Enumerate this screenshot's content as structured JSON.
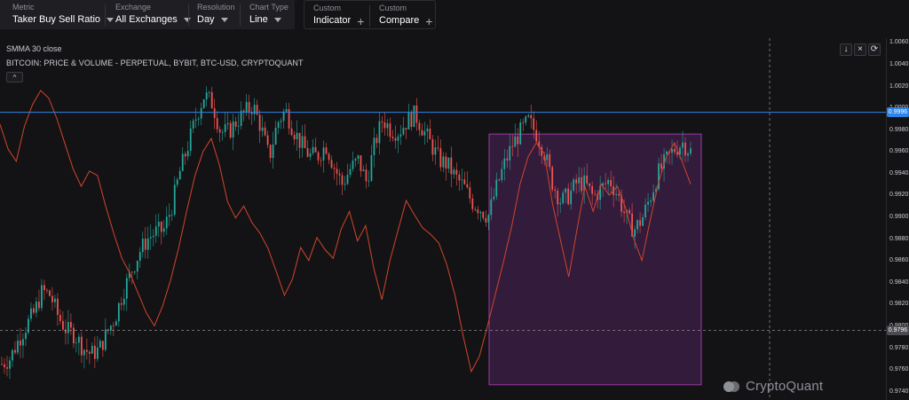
{
  "toolbar": {
    "metric": {
      "label": "Metric",
      "value": "Taker Buy Sell Ratio"
    },
    "exchange": {
      "label": "Exchange",
      "value": "All Exchanges"
    },
    "resolution": {
      "label": "Resolution",
      "value": "Day"
    },
    "chart_type": {
      "label": "Chart Type",
      "value": "Line"
    },
    "indicator": {
      "label": "Custom",
      "value": "Indicator"
    },
    "compare": {
      "label": "Custom",
      "value": "Compare"
    }
  },
  "legend": {
    "indicator": "SMMA 30 close",
    "series": "BITCOIN: PRICE & VOLUME - PERPETUAL, BYBIT, BTC-USD, CRYPTOQUANT",
    "collapse_icon": "chevron-up-icon"
  },
  "chart_controls": {
    "download_icon": "download-icon",
    "close_icon": "close-icon",
    "fullscreen_icon": "fullscreen-icon"
  },
  "watermark": "CryptoQuant",
  "colors": {
    "up": "#26a69a",
    "down": "#ef5350",
    "smma": "#d2452b",
    "price_line": "#2d83e6",
    "highlight_fill": "#3b1d47",
    "highlight_stroke": "#9c3aa6"
  },
  "chart_data": {
    "type": "line",
    "y_axis": {
      "ticks": [
        "1.0060",
        "1.0040",
        "1.0020",
        "1.0000",
        "0.9980",
        "0.9960",
        "0.9940",
        "0.9920",
        "0.9900",
        "0.9880",
        "0.9860",
        "0.9840",
        "0.9820",
        "0.9800",
        "0.9780",
        "0.9760",
        "0.9740"
      ],
      "range": [
        0.9732,
        1.0064
      ]
    },
    "price_line": {
      "label": "0.9996",
      "value": 0.9996
    },
    "crosshair": {
      "label": "0.9796",
      "value": 0.9796
    },
    "highlight_box": {
      "y_top": 0.9976,
      "y_bottom": 0.9746
    },
    "series": [
      {
        "name": "SMMA 30 close",
        "values": [
          0.9985,
          0.9962,
          0.9951,
          0.9983,
          1.0003,
          1.0016,
          1.0009,
          0.999,
          0.9967,
          0.9944,
          0.9928,
          0.9942,
          0.9938,
          0.991,
          0.9885,
          0.9862,
          0.9848,
          0.983,
          0.9812,
          0.98,
          0.9818,
          0.9842,
          0.9872,
          0.9906,
          0.9938,
          0.996,
          0.9972,
          0.9948,
          0.9914,
          0.9899,
          0.991,
          0.9895,
          0.9885,
          0.9871,
          0.985,
          0.9828,
          0.9843,
          0.9872,
          0.986,
          0.9881,
          0.987,
          0.9862,
          0.9889,
          0.9905,
          0.9878,
          0.9892,
          0.9853,
          0.9824,
          0.986,
          0.9888,
          0.9915,
          0.9902,
          0.989,
          0.9884,
          0.9876,
          0.9856,
          0.9828,
          0.9791,
          0.9758,
          0.9772,
          0.98,
          0.983,
          0.986,
          0.9892,
          0.993,
          0.9955,
          0.9968,
          0.9958,
          0.9912,
          0.9878,
          0.9845,
          0.9888,
          0.9928,
          0.9905,
          0.993,
          0.992,
          0.9928,
          0.9908,
          0.988,
          0.986,
          0.9896,
          0.993,
          0.9955,
          0.9968,
          0.995,
          0.993
        ]
      },
      {
        "name": "BITCOIN: PRICE & VOLUME - PERPETUAL, BYBIT, BTC-USD, CRYPTOQUANT",
        "values": [
          0.9765,
          0.977,
          0.9786,
          0.98,
          0.9812,
          0.9832,
          0.9828,
          0.9808,
          0.9796,
          0.9792,
          0.978,
          0.9774,
          0.9778,
          0.9794,
          0.9808,
          0.9832,
          0.985,
          0.9868,
          0.988,
          0.9886,
          0.9888,
          0.991,
          0.9942,
          0.9966,
          0.9992,
          1.0012,
          1.0004,
          0.9978,
          0.9978,
          0.9988,
          0.9996,
          1.0002,
          0.9982,
          0.9954,
          0.9986,
          0.9998,
          0.998,
          0.9966,
          0.9956,
          0.9956,
          0.9966,
          0.9946,
          0.993,
          0.9944,
          0.9952,
          0.9932,
          0.9966,
          0.999,
          0.998,
          0.9978,
          0.9988,
          0.9994,
          0.998,
          0.9966,
          0.9952,
          0.9948,
          0.9936,
          0.9928,
          0.9914,
          0.9908,
          0.99,
          0.9926,
          0.9948,
          0.9966,
          0.9978,
          0.9988,
          0.9976,
          0.9958,
          0.993,
          0.9914,
          0.992,
          0.9932,
          0.993,
          0.9918,
          0.9926,
          0.9934,
          0.992,
          0.99,
          0.9888,
          0.9898,
          0.9918,
          0.994,
          0.9952,
          0.9962,
          0.9968,
          0.996
        ]
      }
    ]
  }
}
